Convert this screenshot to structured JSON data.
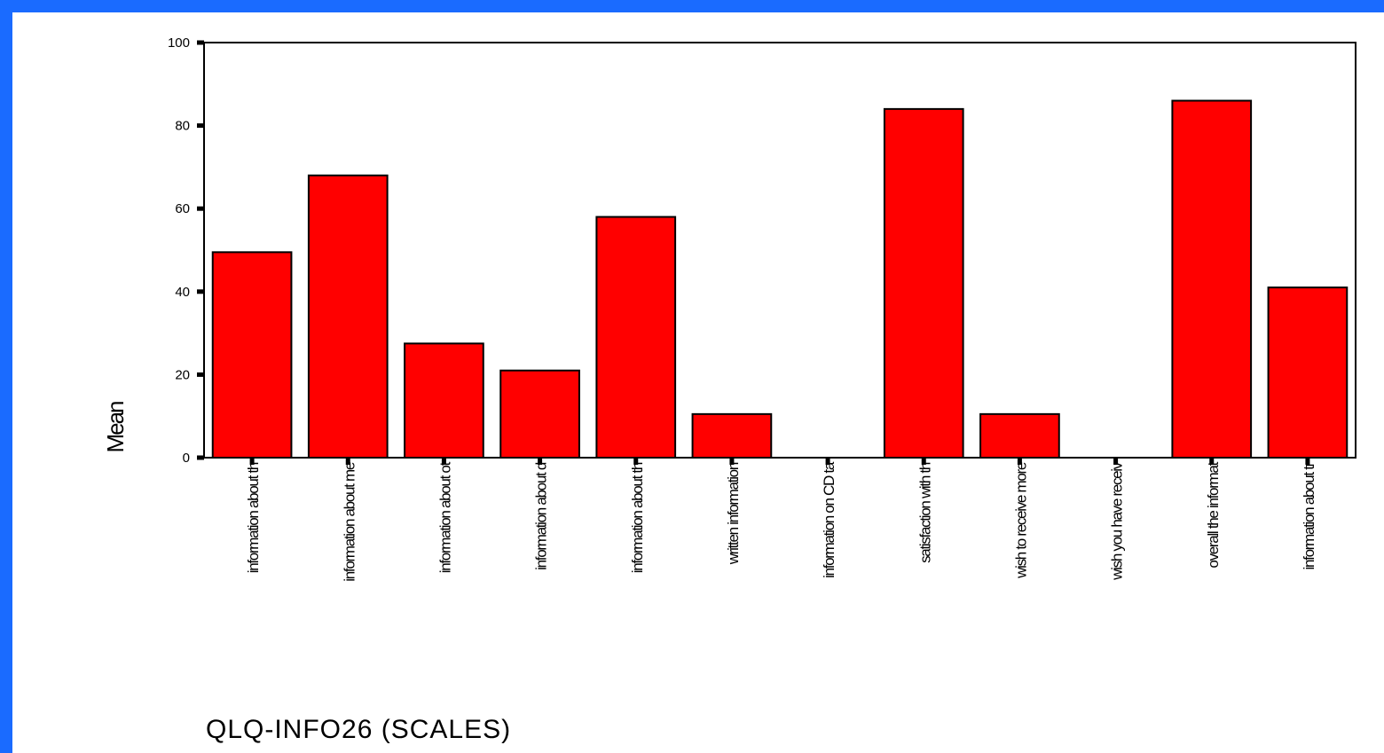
{
  "chart_data": {
    "type": "bar",
    "title": "QLQ-INFO26 (SCALES)",
    "xlabel": "",
    "ylabel": "Mean",
    "ylim": [
      0,
      100
    ],
    "yticks": [
      0,
      20,
      40,
      60,
      80,
      100
    ],
    "grid": false,
    "categories": [
      "information about th",
      "information about me",
      "information about ot",
      "information about d",
      "information about th",
      "written information",
      "information on CD ta",
      "satisfaction with th",
      "wish to receive more",
      "wish you have receiv",
      "overall the informat",
      "information about tr"
    ],
    "values": [
      49.5,
      68,
      27.5,
      21,
      58,
      10.5,
      0,
      84,
      10.5,
      0,
      86,
      41
    ],
    "colors": {
      "bar": "#ff0000",
      "frame": "#1a6bff"
    }
  }
}
